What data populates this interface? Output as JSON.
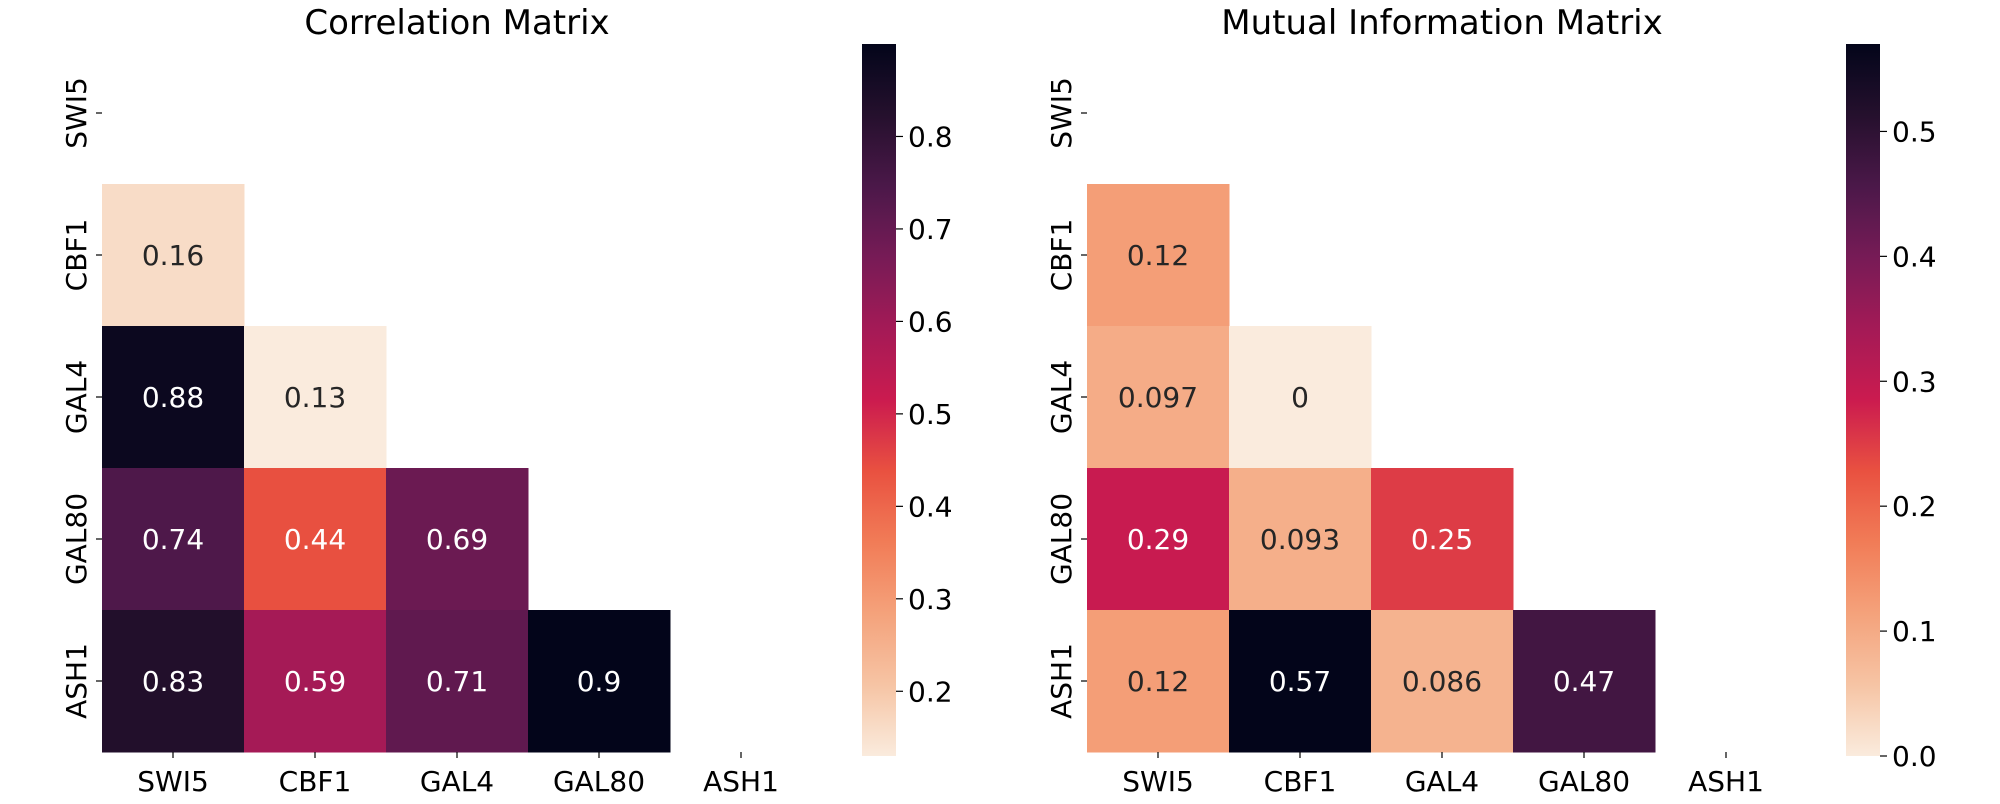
{
  "chart_data": [
    {
      "type": "heatmap",
      "title": "Correlation Matrix",
      "xlabel": "",
      "ylabel": "",
      "rows": [
        "SWI5",
        "CBF1",
        "GAL4",
        "GAL80",
        "ASH1"
      ],
      "columns": [
        "SWI5",
        "CBF1",
        "GAL4",
        "GAL80",
        "ASH1"
      ],
      "mask": "upper triangle including diagonal",
      "values": [
        [
          null,
          null,
          null,
          null,
          null
        ],
        [
          0.16,
          null,
          null,
          null,
          null
        ],
        [
          0.88,
          0.13,
          null,
          null,
          null
        ],
        [
          0.74,
          0.44,
          0.69,
          null,
          null
        ],
        [
          0.83,
          0.59,
          0.71,
          0.9,
          null
        ]
      ],
      "annotations": [
        [
          "",
          "",
          "",
          "",
          ""
        ],
        [
          "0.16",
          "",
          "",
          "",
          ""
        ],
        [
          "0.88",
          "0.13",
          "",
          "",
          ""
        ],
        [
          "0.74",
          "0.44",
          "0.69",
          "",
          ""
        ],
        [
          "0.83",
          "0.59",
          "0.71",
          "0.9",
          ""
        ]
      ],
      "colormap": "rocket_r",
      "colorbar": {
        "vmin": 0.13,
        "vmax": 0.9,
        "ticks": [
          0.2,
          0.3,
          0.4,
          0.5,
          0.6,
          0.7,
          0.8
        ],
        "tick_labels": [
          "0.2",
          "0.3",
          "0.4",
          "0.5",
          "0.6",
          "0.7",
          "0.8"
        ]
      }
    },
    {
      "type": "heatmap",
      "title": "Mutual Information Matrix",
      "xlabel": "",
      "ylabel": "",
      "rows": [
        "SWI5",
        "CBF1",
        "GAL4",
        "GAL80",
        "ASH1"
      ],
      "columns": [
        "SWI5",
        "CBF1",
        "GAL4",
        "GAL80",
        "ASH1"
      ],
      "mask": "upper triangle including diagonal",
      "values": [
        [
          null,
          null,
          null,
          null,
          null
        ],
        [
          0.12,
          null,
          null,
          null,
          null
        ],
        [
          0.097,
          0,
          null,
          null,
          null
        ],
        [
          0.29,
          0.093,
          0.25,
          null,
          null
        ],
        [
          0.12,
          0.57,
          0.086,
          0.47,
          null
        ]
      ],
      "annotations": [
        [
          "",
          "",
          "",
          "",
          ""
        ],
        [
          "0.12",
          "",
          "",
          "",
          ""
        ],
        [
          "0.097",
          "0",
          "",
          "",
          ""
        ],
        [
          "0.29",
          "0.093",
          "0.25",
          "",
          ""
        ],
        [
          "0.12",
          "0.57",
          "0.086",
          "0.47",
          ""
        ]
      ],
      "colormap": "rocket_r",
      "colorbar": {
        "vmin": 0,
        "vmax": 0.57,
        "ticks": [
          0.0,
          0.1,
          0.2,
          0.3,
          0.4,
          0.5
        ],
        "tick_labels": [
          "0.0",
          "0.1",
          "0.2",
          "0.3",
          "0.4",
          "0.5"
        ]
      }
    }
  ]
}
